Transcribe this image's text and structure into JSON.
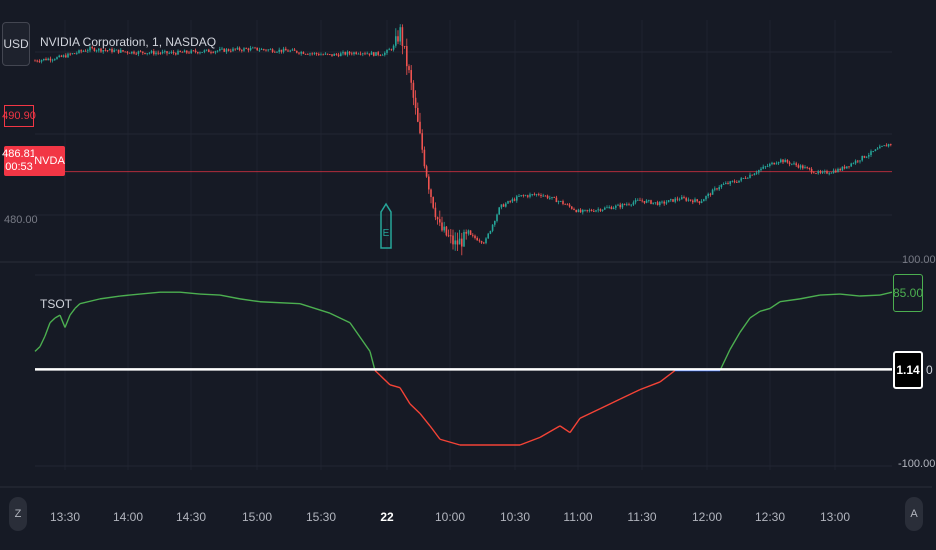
{
  "toolbar": {
    "currency_label": "USD"
  },
  "symbol": {
    "title": "NVIDIA Corporation, 1, NASDAQ",
    "ticker": "NVDA"
  },
  "price_scale": {
    "previous_close": "490.90",
    "last_price": "486.81",
    "countdown": "00:53",
    "clipped_lower": "480.00"
  },
  "indicator": {
    "name": "TSOT",
    "current_value": "85.00",
    "signal_value": "1.14",
    "signal_suffix": "0",
    "scale_top": "100.00",
    "scale_bottom": "-100.00"
  },
  "earnings_marker": {
    "label": "E"
  },
  "bottom_left_button": "Z",
  "bottom_right_button": "A",
  "time_axis": {
    "labels": [
      "13:30",
      "14:00",
      "14:30",
      "15:00",
      "15:30",
      "22",
      "10:00",
      "10:30",
      "11:00",
      "11:30",
      "12:00",
      "12:30",
      "13:00"
    ],
    "bold_label": "22"
  },
  "colors": {
    "background": "#161a25",
    "up": "#26a69a",
    "down": "#ef5350",
    "tsot_positive": "#4caf50",
    "tsot_negative": "#f44336",
    "signal_line": "#ffffff",
    "last_price_line": "#f23645"
  },
  "chart_data": [
    {
      "type": "candlestick",
      "title": "NVIDIA Corporation, 1, NASDAQ",
      "x_ticks": [
        "13:30",
        "14:00",
        "14:30",
        "15:00",
        "15:30",
        "22",
        "10:00",
        "10:30",
        "11:00",
        "11:30",
        "12:00",
        "12:30",
        "13:00"
      ],
      "x_tick_positions": [
        65,
        128,
        191,
        257,
        321,
        387,
        450,
        515,
        578,
        642,
        707,
        770,
        835
      ],
      "close_path_x": [
        35,
        60,
        90,
        130,
        170,
        210,
        250,
        290,
        330,
        360,
        375,
        385,
        395,
        400,
        410,
        420,
        430,
        440,
        455,
        470,
        485,
        500,
        520,
        540,
        560,
        580,
        600,
        620,
        640,
        660,
        680,
        700,
        720,
        740,
        760,
        780,
        800,
        820,
        840,
        860,
        880,
        892
      ],
      "close_path_price": [
        497.2,
        497.5,
        498.3,
        498.0,
        497.9,
        498.1,
        498.3,
        498.1,
        497.7,
        498.0,
        497.8,
        497.9,
        498.6,
        500.0,
        495.5,
        490.0,
        485.0,
        481.5,
        480.0,
        480.8,
        480.2,
        483.5,
        484.5,
        484.7,
        484.0,
        483.0,
        483.3,
        483.6,
        484.1,
        483.8,
        484.3,
        484.0,
        485.5,
        486.0,
        487.0,
        487.9,
        487.3,
        486.6,
        487.0,
        488.0,
        489.0,
        489.5
      ],
      "last_price": 486.81,
      "prev_close": 490.9
    },
    {
      "type": "line",
      "title": "TSOT",
      "ylim": [
        -100,
        100
      ],
      "series": [
        {
          "name": "TSOT",
          "x": [
            35,
            40,
            45,
            50,
            55,
            60,
            65,
            70,
            75,
            80,
            100,
            120,
            140,
            160,
            180,
            200,
            220,
            240,
            260,
            300,
            330,
            350,
            370,
            375,
            380,
            390,
            400,
            410,
            420,
            430,
            440,
            460,
            480,
            520,
            540,
            560,
            570,
            580,
            600,
            620,
            640,
            660,
            675,
            700,
            720,
            730,
            740,
            750,
            760,
            770,
            780,
            800,
            820,
            840,
            860,
            880,
            892
          ],
          "y": [
            20,
            25,
            36,
            50,
            55,
            58,
            45,
            58,
            65,
            70,
            75,
            78,
            80,
            82,
            82,
            80,
            79,
            75,
            72,
            70,
            60,
            50,
            20,
            0,
            -5,
            -15,
            -18,
            -35,
            -45,
            -58,
            -72,
            -78,
            -78,
            -78,
            -70,
            -58,
            -65,
            -50,
            -40,
            -30,
            -20,
            -12,
            0,
            0,
            0,
            22,
            40,
            55,
            62,
            65,
            72,
            75,
            79,
            80,
            78,
            79,
            82
          ]
        },
        {
          "name": "Signal",
          "x": [
            35,
            892
          ],
          "y": [
            1.14,
            1.14
          ]
        }
      ],
      "current_value": 85.0,
      "signal_value": 1.14
    }
  ]
}
